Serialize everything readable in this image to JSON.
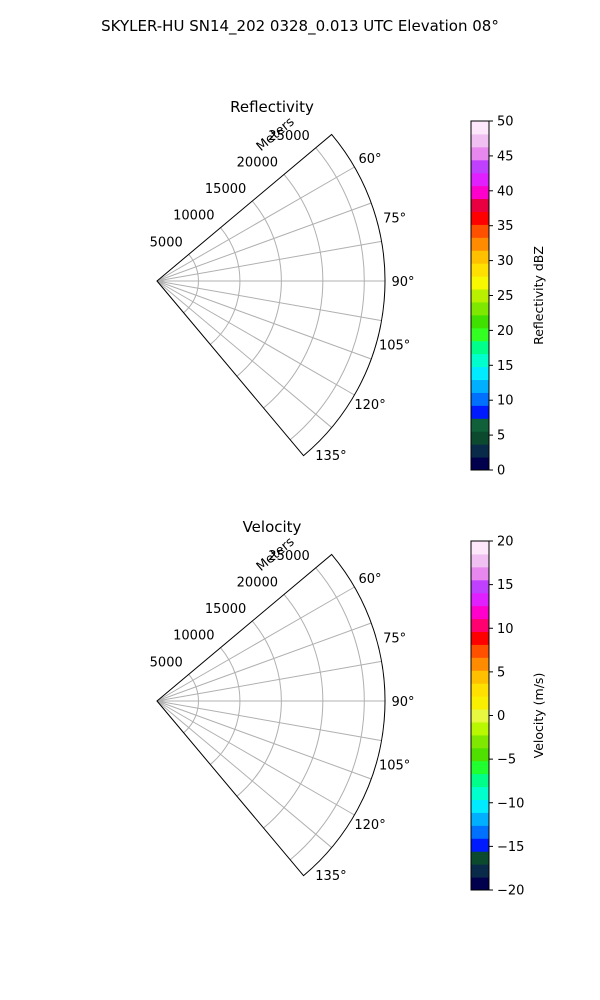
{
  "figure": {
    "title": "SKYLER-HU  SN14_202  0328_0.013 UTC Elevation 08°"
  },
  "chart_data": [
    {
      "type": "polar-sector",
      "title": "Reflectivity",
      "range_label": "Meters",
      "theta_range_deg": [
        50,
        140
      ],
      "theta_ticks": [
        "60°",
        "75°",
        "90°",
        "105°",
        "120°",
        "135°"
      ],
      "theta_tick_values": [
        60,
        75,
        90,
        105,
        120,
        135
      ],
      "r_range": [
        0,
        27500
      ],
      "r_ticks": [
        "5000",
        "10000",
        "15000",
        "20000",
        "25000"
      ],
      "r_tick_values": [
        5000,
        10000,
        15000,
        20000,
        25000
      ],
      "grid": true,
      "colorbar": {
        "label": "Reflectivity dBZ",
        "range": [
          0,
          50
        ],
        "ticks": [
          "0",
          "5",
          "10",
          "15",
          "20",
          "25",
          "30",
          "35",
          "40",
          "45",
          "50"
        ],
        "tick_values": [
          0,
          5,
          10,
          15,
          20,
          25,
          30,
          35,
          40,
          45,
          50
        ],
        "colors": [
          "#00004d",
          "#0a2a4a",
          "#0c4a30",
          "#10603a",
          "#001aff",
          "#0070ff",
          "#00b0ff",
          "#00ebff",
          "#00ffcc",
          "#00ff8a",
          "#33ff22",
          "#40e000",
          "#7ee800",
          "#b8f000",
          "#f8f800",
          "#ffe000",
          "#ffc000",
          "#ff8c00",
          "#ff5000",
          "#ff0000",
          "#e80040",
          "#ff00cc",
          "#e020ff",
          "#c040ff",
          "#e888ee",
          "#f0c0f2",
          "#fde8fb"
        ]
      }
    },
    {
      "type": "polar-sector",
      "title": "Velocity",
      "range_label": "Meters",
      "theta_range_deg": [
        50,
        140
      ],
      "theta_ticks": [
        "60°",
        "75°",
        "90°",
        "105°",
        "120°",
        "135°"
      ],
      "theta_tick_values": [
        60,
        75,
        90,
        105,
        120,
        135
      ],
      "r_range": [
        0,
        27500
      ],
      "r_ticks": [
        "5000",
        "10000",
        "15000",
        "20000",
        "25000"
      ],
      "r_tick_values": [
        5000,
        10000,
        15000,
        20000,
        25000
      ],
      "grid": true,
      "colorbar": {
        "label": "Velocity (m/s)",
        "range": [
          -20,
          20
        ],
        "ticks": [
          "−20",
          "−15",
          "−10",
          "−5",
          "0",
          "5",
          "10",
          "15",
          "20"
        ],
        "tick_values": [
          -20,
          -15,
          -10,
          -5,
          0,
          5,
          10,
          15,
          20
        ],
        "colors": [
          "#00004d",
          "#0a2a4a",
          "#0c4a30",
          "#001aff",
          "#0070ff",
          "#00b0ff",
          "#00ebff",
          "#00ffcc",
          "#00ff8a",
          "#20ff30",
          "#50e000",
          "#80e800",
          "#b8f800",
          "#e8f840",
          "#f8f000",
          "#ffe000",
          "#ffc000",
          "#ff8c00",
          "#ff5000",
          "#ff0000",
          "#ff0070",
          "#ff00cc",
          "#e020ff",
          "#c040ff",
          "#e888ee",
          "#f0c0f2",
          "#fde8fb"
        ]
      }
    }
  ]
}
